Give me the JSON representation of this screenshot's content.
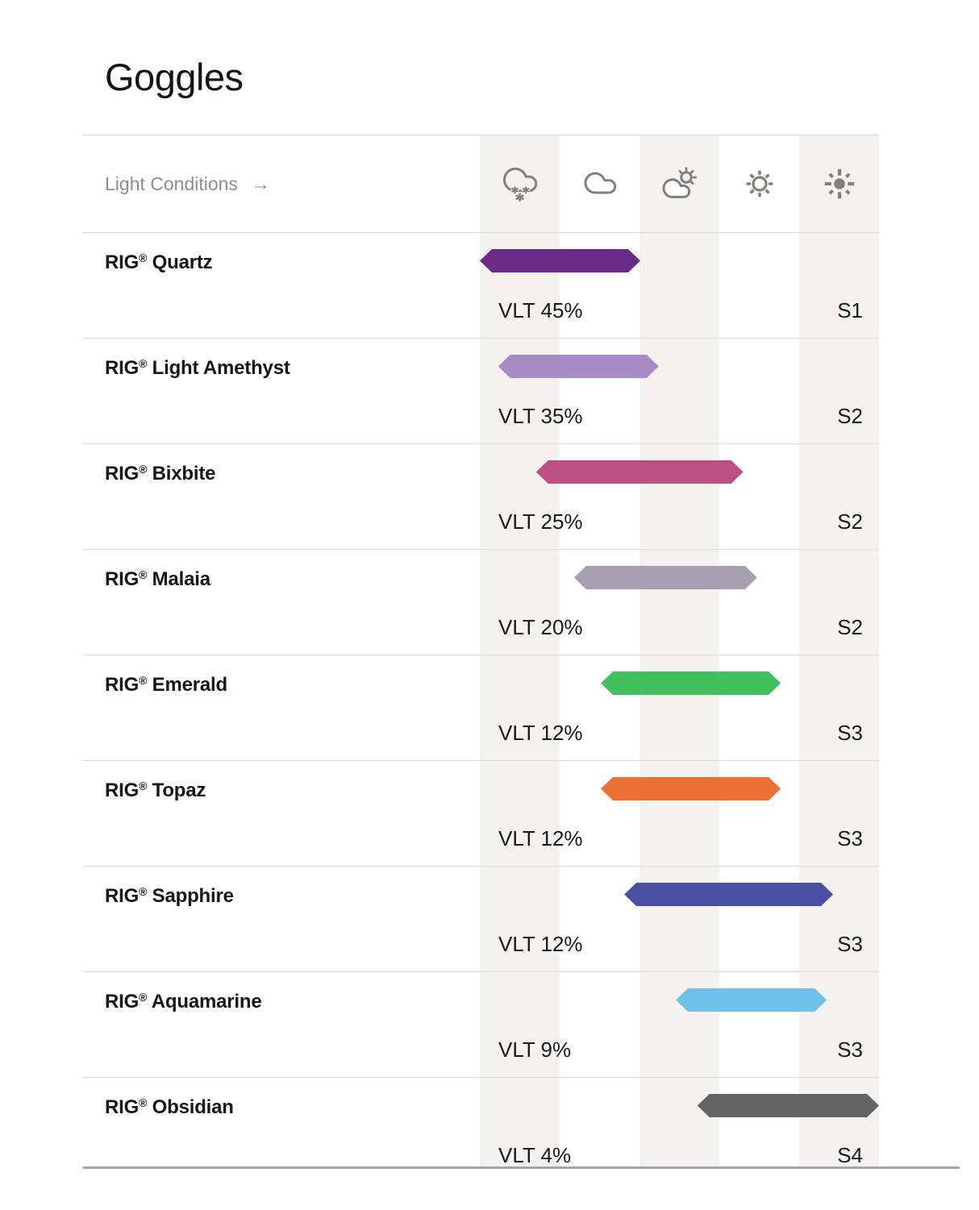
{
  "page": {
    "title": "Goggles"
  },
  "header": {
    "label": "Light Conditions",
    "arrow": "→",
    "icons": [
      {
        "name": "cloud-snow",
        "condition": "snow"
      },
      {
        "name": "cloud",
        "condition": "overcast"
      },
      {
        "name": "cloud-sun",
        "condition": "partly-cloudy"
      },
      {
        "name": "sun",
        "condition": "sunny"
      },
      {
        "name": "sun-bright",
        "condition": "bright-sun"
      }
    ]
  },
  "table": {
    "rows": [
      {
        "brand": "RIG",
        "reg": "®",
        "name": " Quartz",
        "vlt": "VLT 45%",
        "rating": "S1",
        "bar": {
          "color": "#6a2c87",
          "start_pct": 0.0,
          "width_pct": 40.2
        }
      },
      {
        "brand": "RIG",
        "reg": "®",
        "name": " Light Amethyst",
        "vlt": "VLT 35%",
        "rating": "S2",
        "bar": {
          "color": "#a98bc7",
          "start_pct": 4.6,
          "width_pct": 40.2
        }
      },
      {
        "brand": "RIG",
        "reg": "®",
        "name": " Bixbite",
        "vlt": "VLT 25%",
        "rating": "S2",
        "bar": {
          "color": "#bd4f80",
          "start_pct": 14.1,
          "width_pct": 51.9
        }
      },
      {
        "brand": "RIG",
        "reg": "®",
        "name": " Malaia",
        "vlt": "VLT 20%",
        "rating": "S2",
        "bar": {
          "color": "#a8a0b2",
          "start_pct": 23.6,
          "width_pct": 45.9
        }
      },
      {
        "brand": "RIG",
        "reg": "®",
        "name": " Emerald",
        "vlt": "VLT 12%",
        "rating": "S3",
        "bar": {
          "color": "#42c05f",
          "start_pct": 30.3,
          "width_pct": 45.1
        }
      },
      {
        "brand": "RIG",
        "reg": "®",
        "name": " Topaz",
        "vlt": "VLT 12%",
        "rating": "S3",
        "bar": {
          "color": "#ec7134",
          "start_pct": 30.3,
          "width_pct": 45.1
        }
      },
      {
        "brand": "RIG",
        "reg": "®",
        "name": " Sapphire",
        "vlt": "VLT 12%",
        "rating": "S3",
        "bar": {
          "color": "#4a4fa4",
          "start_pct": 36.2,
          "width_pct": 52.3
        }
      },
      {
        "brand": "RIG",
        "reg": "®",
        "name": " Aquamarine",
        "vlt": "VLT 9%",
        "rating": "S3",
        "bar": {
          "color": "#70c0ec",
          "start_pct": 49.1,
          "width_pct": 37.8
        }
      },
      {
        "brand": "RIG",
        "reg": "®",
        "name": " Obsidian",
        "vlt": "VLT 4%",
        "rating": "S4",
        "bar": {
          "color": "#646464",
          "start_pct": 54.5,
          "width_pct": 45.5
        }
      }
    ]
  },
  "colors": {
    "column_stripe": "#f4f2ef",
    "icon_gray": "#82807b",
    "divider": "#dcdad6",
    "bottom_border": "#a7a5a2",
    "muted_text": "#8f8d89",
    "text": "#1a1a1a"
  },
  "chart_data": {
    "type": "bar",
    "orientation": "horizontal-range",
    "title": "Goggles",
    "x_axis": {
      "label": "Light Conditions",
      "categories": [
        "snow",
        "overcast",
        "partly-cloudy",
        "sunny",
        "bright-sun"
      ],
      "range": [
        0,
        5
      ]
    },
    "rows": [
      {
        "label": "RIG® Quartz",
        "vlt_percent": 45,
        "protection": "S1",
        "condition_range": [
          0.0,
          2.0
        ],
        "color": "#6a2c87"
      },
      {
        "label": "RIG® Light Amethyst",
        "vlt_percent": 35,
        "protection": "S2",
        "condition_range": [
          0.2,
          2.2
        ],
        "color": "#a98bc7"
      },
      {
        "label": "RIG® Bixbite",
        "vlt_percent": 25,
        "protection": "S2",
        "condition_range": [
          0.7,
          3.3
        ],
        "color": "#bd4f80"
      },
      {
        "label": "RIG® Malaia",
        "vlt_percent": 20,
        "protection": "S2",
        "condition_range": [
          1.2,
          3.5
        ],
        "color": "#a8a0b2"
      },
      {
        "label": "RIG® Emerald",
        "vlt_percent": 12,
        "protection": "S3",
        "condition_range": [
          1.5,
          3.8
        ],
        "color": "#42c05f"
      },
      {
        "label": "RIG® Topaz",
        "vlt_percent": 12,
        "protection": "S3",
        "condition_range": [
          1.5,
          3.8
        ],
        "color": "#ec7134"
      },
      {
        "label": "RIG® Sapphire",
        "vlt_percent": 12,
        "protection": "S3",
        "condition_range": [
          1.8,
          4.4
        ],
        "color": "#4a4fa4"
      },
      {
        "label": "RIG® Aquamarine",
        "vlt_percent": 9,
        "protection": "S3",
        "condition_range": [
          2.5,
          4.3
        ],
        "color": "#70c0ec"
      },
      {
        "label": "RIG® Obsidian",
        "vlt_percent": 4,
        "protection": "S4",
        "condition_range": [
          2.7,
          5.0
        ],
        "color": "#646464"
      }
    ],
    "grid": "striped-columns",
    "legend_position": "top-icons"
  }
}
